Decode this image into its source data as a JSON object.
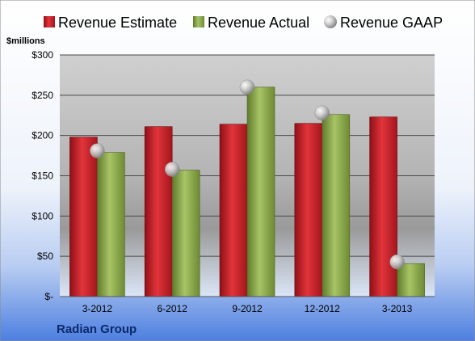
{
  "company": "Radian Group",
  "unit_label": "$millions",
  "colors": {
    "estimate": "#c8232b",
    "actual": "#8aa84a",
    "gaap": "#b8b8b8"
  },
  "chart_data": {
    "type": "bar",
    "categories": [
      "3-2012",
      "6-2012",
      "9-2012",
      "12-2012",
      "3-2013"
    ],
    "series": [
      {
        "name": "Revenue Estimate",
        "kind": "bar",
        "values": [
          198,
          211,
          214,
          215,
          223
        ]
      },
      {
        "name": "Revenue Actual",
        "kind": "bar",
        "values": [
          179,
          157,
          260,
          226,
          41
        ]
      },
      {
        "name": "Revenue GAAP",
        "kind": "marker",
        "values": [
          181,
          158,
          260,
          228,
          43
        ]
      }
    ],
    "ylabel": "$millions",
    "ylim": [
      0,
      300
    ],
    "yticks": [
      0,
      50,
      100,
      150,
      200,
      250,
      300
    ],
    "ytick_labels": [
      "$-",
      "$50",
      "$100",
      "$150",
      "$200",
      "$250",
      "$300"
    ],
    "grid": true,
    "legend_position": "top"
  }
}
